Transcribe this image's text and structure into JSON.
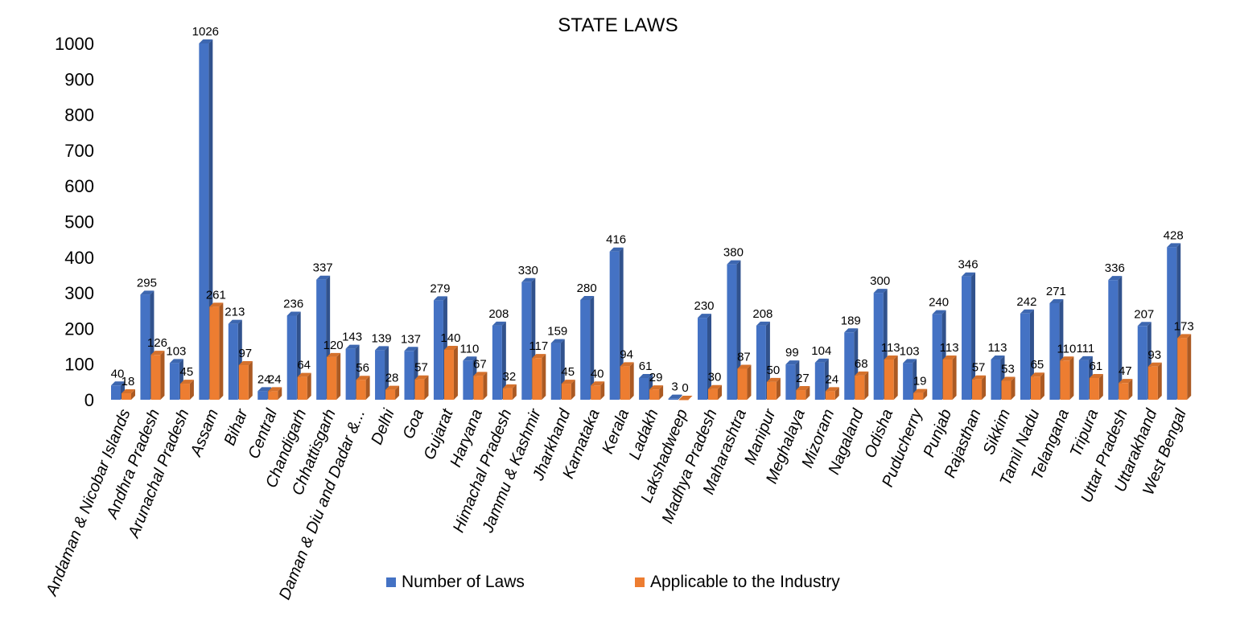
{
  "chart_data": {
    "type": "bar",
    "title": "STATE LAWS",
    "xlabel": "",
    "ylabel": "",
    "ylim": [
      0,
      1000
    ],
    "yticks": [
      0,
      100,
      200,
      300,
      400,
      500,
      600,
      700,
      800,
      900,
      1000
    ],
    "grid": false,
    "legend_position": "bottom",
    "categories": [
      "Andaman & Nicobar Islands",
      "Andhra Pradesh",
      "Arunachal Pradesh",
      "Assam",
      "Bihar",
      "Central",
      "Chandigarh",
      "Chhattisgarh",
      "Daman & Diu and Dadar &...",
      "Delhi",
      "Goa",
      "Gujarat",
      "Haryana",
      "Himachal Pradesh",
      "Jammu & Kashmir",
      "Jharkhand",
      "Karnataka",
      "Kerala",
      "Ladakh",
      "Lakshadweep",
      "Madhya Pradesh",
      "Maharashtra",
      "Manipur",
      "Meghalaya",
      "Mizoram",
      "Nagaland",
      "Odisha",
      "Puducherry",
      "Punjab",
      "Rajasthan",
      "Sikkim",
      "Tamil Nadu",
      "Telangana",
      "Tripura",
      "Uttar Pradesh",
      "Uttarakhand",
      "West Bengal"
    ],
    "series": [
      {
        "name": "Number of Laws",
        "color": "#4472C4",
        "values": [
          40,
          295,
          103,
          1026,
          213,
          24,
          236,
          337,
          143,
          139,
          137,
          279,
          110,
          208,
          330,
          159,
          280,
          416,
          61,
          3,
          230,
          380,
          208,
          99,
          104,
          189,
          300,
          103,
          240,
          346,
          113,
          242,
          271,
          111,
          336,
          207,
          428
        ]
      },
      {
        "name": "Applicable to the Industry",
        "color": "#ED7D31",
        "values": [
          18,
          126,
          45,
          261,
          97,
          24,
          64,
          120,
          56,
          28,
          57,
          140,
          67,
          32,
          117,
          45,
          40,
          94,
          29,
          0,
          30,
          87,
          50,
          27,
          24,
          68,
          113,
          19,
          113,
          57,
          53,
          65,
          110,
          61,
          47,
          93,
          173
        ]
      }
    ]
  }
}
